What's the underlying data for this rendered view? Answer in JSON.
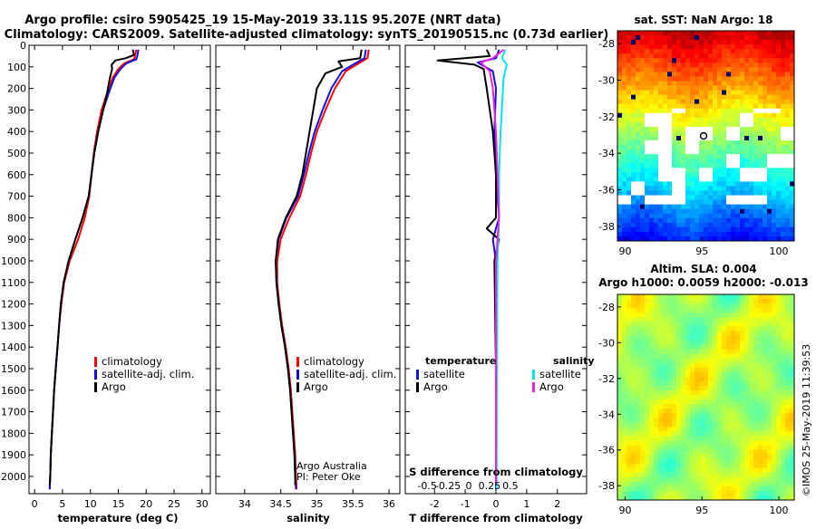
{
  "header": {
    "line1": "Argo profile: csiro 5905425_19 15-May-2019 33.11S 95.207E (NRT data)",
    "line2": "Climatology: CARS2009. Satellite-adjusted climatology: synTS_20190515.nc (0.73d earlier)"
  },
  "colors": {
    "climatology": "#ff0000",
    "satellite": "#1010e0",
    "argo": "#000000",
    "sal_sat": "#00e5ee",
    "sal_argo": "#ee22dd"
  },
  "depth_axis": {
    "range": [
      0,
      2080
    ],
    "ticks": [
      "0",
      "100",
      "200",
      "300",
      "400",
      "500",
      "600",
      "700",
      "800",
      "900",
      "1000",
      "1100",
      "1200",
      "1300",
      "1400",
      "1500",
      "1600",
      "1700",
      "1800",
      "1900",
      "2000"
    ]
  },
  "chart_data": [
    {
      "type": "line",
      "id": "temperature",
      "xlabel": "temperature (deg C)",
      "xlim": [
        -1,
        31.5
      ],
      "xticks": [
        "0",
        "5",
        "10",
        "15",
        "20",
        "25",
        "30"
      ],
      "legend": [
        "climatology",
        "satellite-adj. clim.",
        "Argo"
      ],
      "series": [
        {
          "name": "climatology",
          "color": "#ff0000",
          "points": [
            [
              18.2,
              20
            ],
            [
              18.0,
              50
            ],
            [
              17.8,
              65
            ],
            [
              16,
              85
            ],
            [
              15,
              110
            ],
            [
              14,
              150
            ],
            [
              13,
              220
            ],
            [
              12,
              300
            ],
            [
              11.2,
              400
            ],
            [
              10.6,
              500
            ],
            [
              10.2,
              600
            ],
            [
              9.8,
              700
            ],
            [
              9.0,
              800
            ],
            [
              7.8,
              900
            ],
            [
              6.3,
              1000
            ],
            [
              5.3,
              1100
            ],
            [
              4.8,
              1200
            ],
            [
              4.4,
              1300
            ],
            [
              4.1,
              1400
            ],
            [
              3.8,
              1500
            ],
            [
              3.5,
              1600
            ],
            [
              3.3,
              1700
            ],
            [
              3.1,
              1800
            ],
            [
              2.9,
              1900
            ],
            [
              2.8,
              2000
            ],
            [
              2.7,
              2060
            ]
          ]
        },
        {
          "name": "satellite-adj. clim.",
          "color": "#1010e0",
          "points": [
            [
              18.6,
              20
            ],
            [
              18.4,
              50
            ],
            [
              18.2,
              65
            ],
            [
              16.4,
              85
            ],
            [
              15.4,
              110
            ],
            [
              14.3,
              150
            ],
            [
              13.3,
              220
            ],
            [
              12.3,
              300
            ],
            [
              11.4,
              400
            ],
            [
              10.7,
              500
            ],
            [
              10.2,
              600
            ],
            [
              9.7,
              700
            ],
            [
              8.6,
              800
            ],
            [
              7.3,
              900
            ],
            [
              6.1,
              1000
            ],
            [
              5.2,
              1100
            ],
            [
              4.7,
              1200
            ],
            [
              4.4,
              1300
            ],
            [
              4.1,
              1400
            ],
            [
              3.8,
              1500
            ],
            [
              3.5,
              1600
            ],
            [
              3.3,
              1700
            ],
            [
              3.1,
              1800
            ],
            [
              2.9,
              1900
            ],
            [
              2.8,
              2000
            ],
            [
              2.7,
              2060
            ]
          ]
        },
        {
          "name": "Argo",
          "color": "#000000",
          "points": [
            [
              17.6,
              20
            ],
            [
              17.8,
              45
            ],
            [
              16.3,
              60
            ],
            [
              14.5,
              70
            ],
            [
              13.8,
              90
            ],
            [
              13.9,
              110
            ],
            [
              13.5,
              150
            ],
            [
              13.0,
              220
            ],
            [
              12.3,
              300
            ],
            [
              11.4,
              400
            ],
            [
              10.7,
              500
            ],
            [
              10.2,
              600
            ],
            [
              9.7,
              700
            ],
            [
              8.6,
              800
            ],
            [
              7.3,
              900
            ],
            [
              6.1,
              1000
            ],
            [
              5.2,
              1100
            ],
            [
              4.7,
              1200
            ],
            [
              4.4,
              1300
            ],
            [
              4.1,
              1400
            ],
            [
              3.8,
              1500
            ],
            [
              3.5,
              1600
            ],
            [
              3.3,
              1700
            ],
            [
              3.1,
              1800
            ],
            [
              2.9,
              1900
            ],
            [
              2.8,
              2000
            ],
            [
              2.7,
              2040
            ]
          ]
        }
      ]
    },
    {
      "type": "line",
      "id": "salinity",
      "xlabel": "salinity",
      "xlim": [
        33.6,
        36.15
      ],
      "xticks": [
        "34",
        "34.5",
        "35",
        "35.5",
        "36"
      ],
      "legend": [
        "climatology",
        "satellite-adj. clim.",
        "Argo"
      ],
      "annotations": [
        "Argo Australia",
        "PI: Peter Oke"
      ],
      "series": [
        {
          "name": "climatology",
          "color": "#ff0000",
          "points": [
            [
              35.72,
              20
            ],
            [
              35.7,
              60
            ],
            [
              35.55,
              90
            ],
            [
              35.4,
              120
            ],
            [
              35.25,
              200
            ],
            [
              35.12,
              300
            ],
            [
              35.0,
              400
            ],
            [
              34.92,
              500
            ],
            [
              34.85,
              600
            ],
            [
              34.77,
              700
            ],
            [
              34.62,
              800
            ],
            [
              34.5,
              900
            ],
            [
              34.45,
              1000
            ],
            [
              34.45,
              1100
            ],
            [
              34.48,
              1200
            ],
            [
              34.52,
              1300
            ],
            [
              34.57,
              1400
            ],
            [
              34.61,
              1500
            ],
            [
              34.64,
              1600
            ],
            [
              34.66,
              1700
            ],
            [
              34.68,
              1800
            ],
            [
              34.7,
              1900
            ],
            [
              34.71,
              2000
            ],
            [
              34.72,
              2060
            ]
          ]
        },
        {
          "name": "satellite-adj. clim.",
          "color": "#1010e0",
          "points": [
            [
              35.68,
              20
            ],
            [
              35.66,
              60
            ],
            [
              35.5,
              90
            ],
            [
              35.35,
              120
            ],
            [
              35.2,
              200
            ],
            [
              35.08,
              300
            ],
            [
              34.97,
              400
            ],
            [
              34.89,
              500
            ],
            [
              34.82,
              600
            ],
            [
              34.74,
              700
            ],
            [
              34.58,
              800
            ],
            [
              34.47,
              900
            ],
            [
              34.43,
              1000
            ],
            [
              34.44,
              1100
            ],
            [
              34.47,
              1200
            ],
            [
              34.51,
              1300
            ],
            [
              34.56,
              1400
            ],
            [
              34.6,
              1500
            ],
            [
              34.63,
              1600
            ],
            [
              34.65,
              1700
            ],
            [
              34.67,
              1800
            ],
            [
              34.69,
              1900
            ],
            [
              34.7,
              2000
            ],
            [
              34.71,
              2060
            ]
          ]
        },
        {
          "name": "Argo",
          "color": "#000000",
          "points": [
            [
              35.62,
              20
            ],
            [
              35.6,
              60
            ],
            [
              35.3,
              75
            ],
            [
              35.35,
              100
            ],
            [
              35.12,
              130
            ],
            [
              35.0,
              200
            ],
            [
              34.95,
              300
            ],
            [
              34.9,
              400
            ],
            [
              34.85,
              500
            ],
            [
              34.8,
              600
            ],
            [
              34.72,
              700
            ],
            [
              34.57,
              800
            ],
            [
              34.46,
              900
            ],
            [
              34.43,
              1000
            ],
            [
              34.44,
              1100
            ],
            [
              34.47,
              1200
            ],
            [
              34.51,
              1300
            ],
            [
              34.56,
              1400
            ],
            [
              34.6,
              1500
            ],
            [
              34.63,
              1600
            ],
            [
              34.65,
              1700
            ],
            [
              34.67,
              1800
            ],
            [
              34.69,
              1900
            ],
            [
              34.7,
              2000
            ],
            [
              34.7,
              2040
            ]
          ]
        }
      ]
    },
    {
      "type": "line",
      "id": "difference",
      "xlabel": "T difference from climatology",
      "xlabel2": "S difference from climatology",
      "xlim": [
        -2.95,
        2.95
      ],
      "xticks": [
        "-2",
        "-1",
        "0",
        "1",
        "2"
      ],
      "xticks2": [
        "-0.5",
        "-0.25",
        "0",
        "0.25",
        "0.5"
      ],
      "legend_temperature_title": "temperature",
      "legend_salinity_title": "salinity",
      "legend_temperature": [
        "satellite",
        "Argo"
      ],
      "legend_salinity": [
        "satellite",
        "Argo"
      ],
      "series": [
        {
          "name": "T satellite",
          "color": "#1010e0",
          "points": [
            [
              0.1,
              20
            ],
            [
              0.0,
              60
            ],
            [
              -0.6,
              80
            ],
            [
              -0.1,
              120
            ],
            [
              0.0,
              200
            ],
            [
              -0.05,
              400
            ],
            [
              0.0,
              600
            ],
            [
              0.1,
              800
            ],
            [
              -0.1,
              900
            ],
            [
              0.0,
              1000
            ],
            [
              0.0,
              1500
            ],
            [
              0.0,
              2060
            ]
          ]
        },
        {
          "name": "T Argo",
          "color": "#000000",
          "points": [
            [
              -0.3,
              20
            ],
            [
              -0.2,
              50
            ],
            [
              -1.9,
              70
            ],
            [
              -0.7,
              90
            ],
            [
              -0.4,
              110
            ],
            [
              -0.3,
              200
            ],
            [
              -0.1,
              400
            ],
            [
              0.0,
              600
            ],
            [
              0.0,
              800
            ],
            [
              -0.3,
              850
            ],
            [
              0.1,
              900
            ],
            [
              -0.05,
              1000
            ],
            [
              0.0,
              1500
            ],
            [
              0.0,
              2040
            ]
          ]
        },
        {
          "name": "S satellite",
          "color": "#00e5ee",
          "points": [
            [
              0.3,
              20
            ],
            [
              0.2,
              60
            ],
            [
              0.35,
              90
            ],
            [
              0.25,
              150
            ],
            [
              0.15,
              400
            ],
            [
              0.1,
              600
            ],
            [
              0.1,
              800
            ],
            [
              0.05,
              1000
            ],
            [
              0.03,
              1500
            ],
            [
              0.02,
              2060
            ]
          ]
        },
        {
          "name": "S Argo",
          "color": "#ee22dd",
          "points": [
            [
              0.25,
              20
            ],
            [
              -0.1,
              60
            ],
            [
              -0.5,
              80
            ],
            [
              -0.2,
              120
            ],
            [
              -0.1,
              200
            ],
            [
              0.0,
              400
            ],
            [
              0.05,
              600
            ],
            [
              0.1,
              800
            ],
            [
              0.05,
              900
            ],
            [
              0.0,
              1000
            ],
            [
              0.0,
              1500
            ],
            [
              0.0,
              2040
            ]
          ]
        }
      ]
    },
    {
      "type": "heatmap",
      "id": "sst-map",
      "title": "sat. SST: NaN Argo: 18",
      "xticks": [
        "90",
        "95",
        "100"
      ],
      "yticks": [
        "-28",
        "-30",
        "-32",
        "-34",
        "-36",
        "-38"
      ],
      "marker": "Argo position"
    },
    {
      "type": "heatmap",
      "id": "sla-map",
      "title": "Altim. SLA: 0.004",
      "subtitle": "Argo h1000: 0.0059 h2000: -0.013",
      "xticks": [
        "90",
        "95",
        "100"
      ],
      "yticks": [
        "-28",
        "-30",
        "-32",
        "-34",
        "-36",
        "-38"
      ]
    }
  ],
  "watermark": "©IMOS 25-May-2019 11:39:53"
}
